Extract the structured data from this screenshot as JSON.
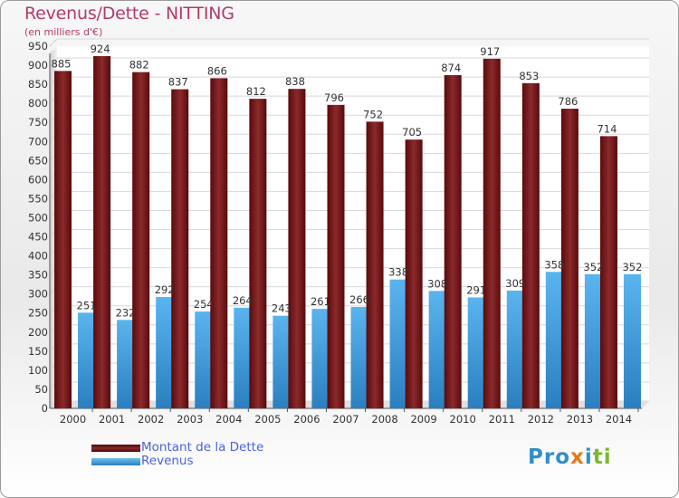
{
  "title": "Revenus/Dette - NITTING",
  "subtitle": "(en milliers d'€)",
  "logo": {
    "text": "Proxiti",
    "parts": [
      "Pro",
      "x",
      "i",
      "ti"
    ]
  },
  "colors": {
    "dette": "#7a1a1c",
    "revenus": "#3d9ee0",
    "title": "#b23a6a",
    "legend_text": "#4a63d8"
  },
  "chart_data": {
    "type": "bar",
    "categories": [
      "2000",
      "2001",
      "2002",
      "2003",
      "2004",
      "2005",
      "2006",
      "2007",
      "2008",
      "2009",
      "2010",
      "2011",
      "2012",
      "2013",
      "2014"
    ],
    "series": [
      {
        "name": "Montant de la Dette",
        "values": [
          885,
          924,
          882,
          837,
          866,
          812,
          838,
          796,
          752,
          705,
          874,
          917,
          853,
          786,
          714
        ]
      },
      {
        "name": "Revenus",
        "values": [
          251,
          232,
          292,
          254,
          264,
          243,
          261,
          266,
          338,
          308,
          291,
          309,
          358,
          352,
          352
        ]
      }
    ],
    "yticks": [
      0,
      50,
      100,
      150,
      200,
      250,
      300,
      350,
      400,
      450,
      500,
      550,
      600,
      650,
      700,
      750,
      800,
      850,
      900,
      950
    ],
    "ylim": [
      0,
      950
    ],
    "grid": true,
    "legend_position": "bottom-left"
  }
}
